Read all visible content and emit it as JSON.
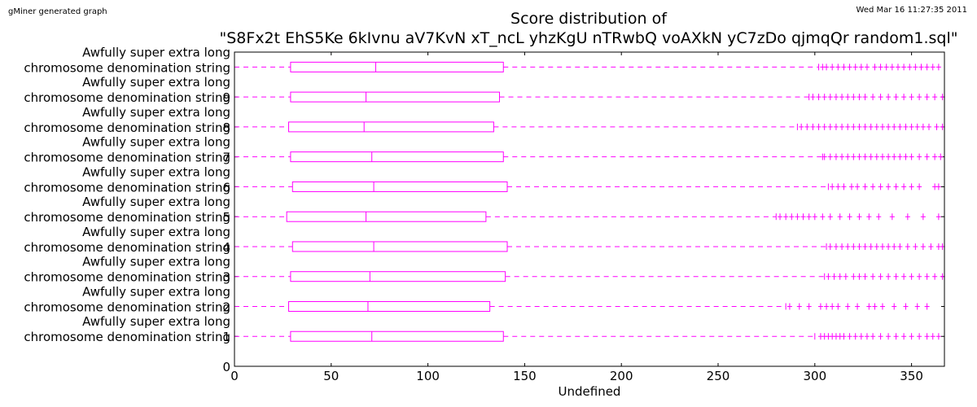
{
  "header": {
    "generator": "gMiner generated graph",
    "timestamp": "Wed Mar 16 11:27:35 2011"
  },
  "chart_data": {
    "type": "boxplot",
    "title": "Score distribution of",
    "subtitle": "\"S8Fx2t EhS5Ke 6kIvnu aV7KvN xT_ncL yhzKgU nTRwbQ voAXkN yC7zDo qjmqQr random1.sql\"",
    "xlabel": "Undefined",
    "ylabel": "",
    "xlim": [
      0,
      367
    ],
    "ylim": [
      0,
      10.5
    ],
    "xticks": [
      0,
      50,
      100,
      150,
      200,
      250,
      300,
      350
    ],
    "yticks": [
      0,
      1,
      2,
      3,
      4,
      5,
      6,
      7,
      8,
      9
    ],
    "color": "#ff00ff",
    "series": [
      {
        "label_top": "Awfully super extra long",
        "label_bottom": "chromosome denomination string",
        "position": 1,
        "whisker_low": 0,
        "q1": 29,
        "median": 71,
        "q3": 139,
        "whisker_high": 300,
        "outliers": [
          303,
          305,
          307,
          309,
          311,
          313,
          315,
          318,
          321,
          324,
          327,
          330,
          334,
          338,
          342,
          346,
          350,
          354,
          358,
          361,
          364
        ]
      },
      {
        "label_top": "Awfully super extra long",
        "label_bottom": "chromosome denomination string",
        "position": 2,
        "whisker_low": 0,
        "q1": 28,
        "median": 69,
        "q3": 132,
        "whisker_high": 285,
        "outliers": [
          287,
          292,
          297,
          303,
          306,
          309,
          312,
          317,
          322,
          328,
          331,
          335,
          341,
          347,
          353,
          358
        ]
      },
      {
        "label_top": "Awfully super extra long",
        "label_bottom": "chromosome denomination string",
        "position": 3,
        "whisker_low": 0,
        "q1": 29,
        "median": 70,
        "q3": 140,
        "whisker_high": 305,
        "outliers": [
          307,
          310,
          313,
          316,
          320,
          323,
          326,
          330,
          334,
          338,
          342,
          346,
          350,
          354,
          358,
          362,
          366
        ]
      },
      {
        "label_top": "Awfully super extra long",
        "label_bottom": "chromosome denomination string",
        "position": 4,
        "whisker_low": 0,
        "q1": 30,
        "median": 72,
        "q3": 141,
        "whisker_high": 306,
        "outliers": [
          308,
          311,
          314,
          317,
          320,
          323,
          326,
          329,
          332,
          335,
          338,
          341,
          344,
          348,
          352,
          356,
          360,
          364,
          366
        ]
      },
      {
        "label_top": "Awfully super extra long",
        "label_bottom": "chromosome denomination string",
        "position": 5,
        "whisker_low": 0,
        "q1": 27,
        "median": 68,
        "q3": 130,
        "whisker_high": 280,
        "outliers": [
          282,
          285,
          288,
          291,
          294,
          297,
          300,
          304,
          308,
          313,
          318,
          323,
          328,
          333,
          340,
          348,
          356,
          364
        ]
      },
      {
        "label_top": "Awfully super extra long",
        "label_bottom": "chromosome denomination string",
        "position": 6,
        "whisker_low": 0,
        "q1": 30,
        "median": 72,
        "q3": 141,
        "whisker_high": 307,
        "outliers": [
          309,
          312,
          315,
          319,
          322,
          326,
          330,
          334,
          338,
          342,
          346,
          350,
          354,
          362,
          364
        ]
      },
      {
        "label_top": "Awfully super extra long",
        "label_bottom": "chromosome denomination string",
        "position": 7,
        "whisker_low": 0,
        "q1": 29,
        "median": 71,
        "q3": 139,
        "whisker_high": 304,
        "outliers": [
          305,
          308,
          311,
          314,
          317,
          320,
          323,
          326,
          329,
          332,
          335,
          338,
          341,
          344,
          347,
          350,
          354,
          358,
          362,
          365
        ]
      },
      {
        "label_top": "Awfully super extra long",
        "label_bottom": "chromosome denomination string",
        "position": 8,
        "whisker_low": 0,
        "q1": 28,
        "median": 67,
        "q3": 134,
        "whisker_high": 291,
        "outliers": [
          293,
          296,
          299,
          302,
          305,
          308,
          311,
          314,
          317,
          320,
          323,
          326,
          329,
          332,
          335,
          338,
          341,
          344,
          347,
          350,
          353,
          356,
          359,
          363,
          366
        ]
      },
      {
        "label_top": "Awfully super extra long",
        "label_bottom": "chromosome denomination string",
        "position": 9,
        "whisker_low": 0,
        "q1": 29,
        "median": 68,
        "q3": 137,
        "whisker_high": 297,
        "outliers": [
          299,
          302,
          305,
          308,
          311,
          314,
          317,
          320,
          323,
          326,
          330,
          334,
          338,
          342,
          346,
          350,
          354,
          358,
          362,
          366
        ]
      },
      {
        "label_top": "Awfully super extra long",
        "label_bottom": "chromosome denomination string",
        "position": 10,
        "whisker_low": 0,
        "q1": 29,
        "median": 73,
        "q3": 139,
        "whisker_high": 302,
        "outliers": [
          304,
          306,
          309,
          312,
          315,
          318,
          321,
          324,
          327,
          331,
          334,
          337,
          340,
          343,
          346,
          349,
          352,
          355,
          358,
          361,
          364
        ]
      }
    ]
  }
}
